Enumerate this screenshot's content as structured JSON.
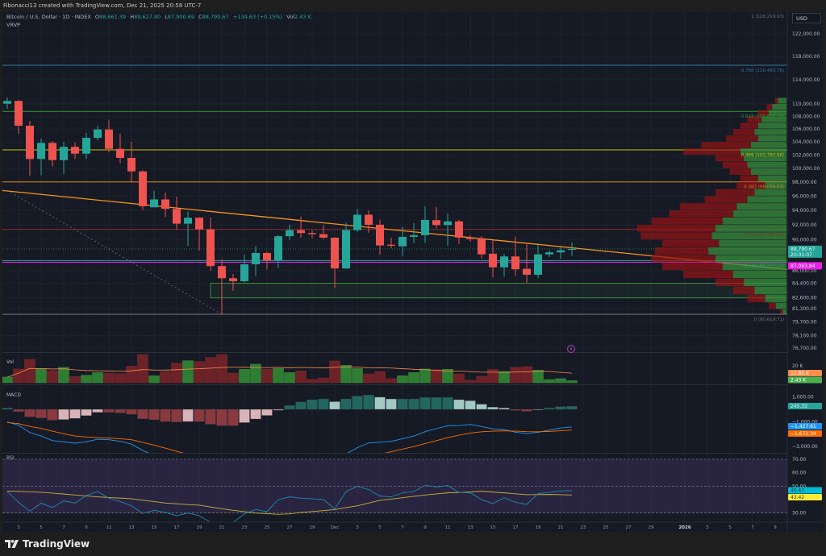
{
  "attribution": "Fibonacci13 created with TradingView.com, Dec 21, 2025 20:58 UTC-7",
  "legend": {
    "symbol": "Bitcoin / U.S. Dollar · 1D · INDEX",
    "o_label": "O",
    "o": "88,661.39",
    "h_label": "H",
    "h": "89,627.40",
    "l_label": "L",
    "l": "87,900.69",
    "c_label": "C",
    "c": "88,790.67",
    "change": "+134.63 (+0.15%)",
    "vol_label": "Vol",
    "vol": "2.43 K",
    "indicator": "VRVP"
  },
  "currency_button": "USD",
  "brand": "TradingView",
  "colors": {
    "background": "#161a25",
    "up": "#26a69a",
    "down": "#ef5350",
    "trendline": "#f7931a",
    "current_price": "#26a69a",
    "marker_price": "#e91ee9"
  },
  "icons": {
    "events": "lightning-circle-icon",
    "logo": "tradingview-logo-icon"
  },
  "chart_data": [
    {
      "type": "candlestick",
      "pane": "price",
      "scale": "log",
      "price_axis_labels": [
        "122,000.00",
        "118,000.00",
        "114,000.00",
        "110,000.00",
        "108,000.00",
        "106,000.00",
        "104,000.00",
        "102,000.00",
        "100,000.00",
        "98,000.00",
        "96,000.00",
        "94,000.00",
        "92,000.00",
        "90,000.00",
        "86,000.00",
        "84,400.00",
        "82,600.00",
        "81,300.00",
        "79,700.00",
        "78,100.00",
        "76,700.00"
      ],
      "time_axis_labels": [
        "3",
        "5",
        "7",
        "9",
        "11",
        "13",
        "15",
        "17",
        "19",
        "21",
        "23",
        "25",
        "27",
        "29",
        "Dec",
        "3",
        "5",
        "7",
        "9",
        "11",
        "13",
        "15",
        "17",
        "19",
        "21",
        "23",
        "25",
        "27",
        "29",
        "2026",
        "3",
        "5",
        "7",
        "9"
      ],
      "candles_columns": [
        "date",
        "open",
        "high",
        "low",
        "close"
      ],
      "candles": [
        [
          "2025-11-02",
          110040,
          111090,
          109220,
          110490
        ],
        [
          "2025-11-03",
          110490,
          110660,
          105260,
          106520
        ],
        [
          "2025-11-04",
          106520,
          107280,
          98940,
          101410
        ],
        [
          "2025-11-05",
          101410,
          104510,
          98980,
          103850
        ],
        [
          "2025-11-06",
          103850,
          104100,
          100280,
          101240
        ],
        [
          "2025-11-07",
          101240,
          104000,
          99210,
          103240
        ],
        [
          "2025-11-08",
          103240,
          103890,
          101410,
          102210
        ],
        [
          "2025-11-09",
          102210,
          105390,
          101410,
          104630
        ],
        [
          "2025-11-10",
          104630,
          106520,
          104220,
          105930
        ],
        [
          "2025-11-11",
          105930,
          107370,
          102420,
          102940
        ],
        [
          "2025-11-12",
          102940,
          105260,
          100760,
          101570
        ],
        [
          "2025-11-13",
          101570,
          104000,
          97920,
          99570
        ],
        [
          "2025-11-14",
          99570,
          99730,
          94050,
          94570
        ],
        [
          "2025-11-15",
          94420,
          96760,
          94420,
          95530
        ],
        [
          "2025-11-16",
          95530,
          96500,
          93090,
          94200
        ],
        [
          "2025-11-17",
          94200,
          95930,
          91360,
          92160
        ],
        [
          "2025-11-18",
          92160,
          93820,
          89210,
          92980
        ],
        [
          "2025-11-19",
          92980,
          93050,
          88580,
          91400
        ],
        [
          "2025-11-20",
          91400,
          93010,
          85980,
          86570
        ],
        [
          "2025-11-21",
          86570,
          87430,
          80620,
          85030
        ],
        [
          "2025-11-22",
          85030,
          85570,
          83460,
          84660
        ],
        [
          "2025-11-23",
          84660,
          88050,
          84500,
          86800
        ],
        [
          "2025-11-24",
          86800,
          89180,
          85300,
          88260
        ],
        [
          "2025-11-25",
          88260,
          88470,
          86120,
          87320
        ],
        [
          "2025-11-26",
          87320,
          90610,
          86330,
          90470
        ],
        [
          "2025-11-27",
          90470,
          92020,
          89960,
          91290
        ],
        [
          "2025-11-28",
          91290,
          93120,
          90280,
          90900
        ],
        [
          "2025-11-29",
          90900,
          91250,
          90210,
          90750
        ],
        [
          "2025-11-30",
          90750,
          91980,
          90100,
          90280
        ],
        [
          "2025-12-01",
          90280,
          90310,
          83830,
          86270
        ],
        [
          "2025-12-02",
          86270,
          92350,
          86200,
          91290
        ],
        [
          "2025-12-03",
          91290,
          94200,
          91060,
          93400
        ],
        [
          "2025-12-04",
          93400,
          93980,
          90930,
          92020
        ],
        [
          "2025-12-05",
          92020,
          92710,
          88050,
          89250
        ],
        [
          "2025-12-06",
          89350,
          90280,
          88860,
          89210
        ],
        [
          "2025-12-07",
          89140,
          91730,
          87810,
          90390
        ],
        [
          "2025-12-08",
          90390,
          92240,
          89560,
          90610
        ],
        [
          "2025-12-09",
          90610,
          94570,
          89560,
          92680
        ],
        [
          "2025-12-10",
          92640,
          94490,
          91560,
          91980
        ],
        [
          "2025-12-11",
          91980,
          93560,
          89210,
          92480
        ],
        [
          "2025-12-12",
          92480,
          92710,
          89450,
          90280
        ],
        [
          "2025-12-13",
          90310,
          90610,
          89750,
          90100
        ],
        [
          "2025-12-14",
          90200,
          90460,
          87560,
          88080
        ],
        [
          "2025-12-15",
          88160,
          89990,
          85130,
          86410
        ],
        [
          "2025-12-16",
          86410,
          88160,
          85230,
          87810
        ],
        [
          "2025-12-17",
          87810,
          90390,
          85300,
          86160
        ],
        [
          "2025-12-18",
          86230,
          89390,
          84460,
          85470
        ],
        [
          "2025-12-19",
          85470,
          89320,
          85060,
          88080
        ],
        [
          "2025-12-20",
          88080,
          88580,
          87740,
          88340
        ],
        [
          "2025-12-21",
          88340,
          89030,
          87530,
          88610
        ],
        [
          "2025-12-22",
          88661.39,
          89627.4,
          87900.69,
          88790.67
        ]
      ],
      "fib_levels": [
        {
          "label": "1 (126,219.03)",
          "price": 126219.03,
          "color": "#787b86"
        },
        {
          "label": "0.786 (116,460.78)",
          "price": 116460.78,
          "color": "#2f7fa8"
        },
        {
          "label": "0.618 (108,800.09)",
          "price": 108800.09,
          "color": "#2e9e2e"
        },
        {
          "label": "0.486 (102,780.98)",
          "price": 102780.98,
          "color": "#c8c800"
        },
        {
          "label": "0.382 (98,038.63)",
          "price": 98038.63,
          "color": "#d9891e"
        },
        {
          "label": "0.236 (91,381.15)",
          "price": 91381.15,
          "color": "#8b2a2a"
        },
        {
          "label": "0.146 (87,277.21)",
          "price": 87277.21,
          "color": "#26a69a"
        },
        {
          "label": "0 (80,619.71)",
          "price": 80619.71,
          "color": "#787b86"
        }
      ],
      "trendline": {
        "from": [
          "2025-11-02",
          96800
        ],
        "to": [
          "2026-01-11",
          86000
        ],
        "color": "#f7931a"
      },
      "dotted_line": {
        "from": [
          "2025-11-02",
          96800
        ],
        "to": [
          "2025-11-21",
          80620
        ]
      },
      "zone": {
        "from_date": "2025-11-20",
        "to_date": "2026-01-11",
        "top": 84400,
        "bottom": 82600
      },
      "marker_line": {
        "price": 87063.84,
        "label": "87,063.84",
        "color": "#e91ee9"
      },
      "last_price": {
        "price": 88790.67,
        "label": "88,790.67",
        "countdown": "20:01:07"
      },
      "volume_profile_columns": [
        "price",
        "up_volume",
        "down_volume"
      ],
      "volume_profile": [
        [
          110500,
          12,
          4
        ],
        [
          109500,
          20,
          8
        ],
        [
          108500,
          25,
          15
        ],
        [
          107500,
          35,
          20
        ],
        [
          106500,
          40,
          25
        ],
        [
          105500,
          45,
          30
        ],
        [
          104500,
          40,
          45
        ],
        [
          103500,
          50,
          70
        ],
        [
          102500,
          65,
          80
        ],
        [
          101500,
          60,
          40
        ],
        [
          100500,
          55,
          35
        ],
        [
          99500,
          50,
          30
        ],
        [
          98500,
          40,
          25
        ],
        [
          97500,
          30,
          40
        ],
        [
          96500,
          45,
          55
        ],
        [
          95500,
          55,
          60
        ],
        [
          94500,
          70,
          80
        ],
        [
          93500,
          75,
          90
        ],
        [
          92500,
          90,
          100
        ],
        [
          91500,
          100,
          110
        ],
        [
          90500,
          105,
          100
        ],
        [
          89500,
          95,
          80
        ],
        [
          88500,
          110,
          75
        ],
        [
          87500,
          100,
          90
        ],
        [
          86500,
          90,
          85
        ],
        [
          85500,
          75,
          70
        ],
        [
          84500,
          60,
          40
        ],
        [
          83500,
          45,
          30
        ],
        [
          82500,
          30,
          25
        ],
        [
          81500,
          15,
          10
        ],
        [
          80900,
          5,
          4
        ]
      ]
    },
    {
      "type": "bar",
      "pane": "volume",
      "title": "Vol",
      "unit": "K",
      "values": [
        6.7,
        16.2,
        27.6,
        16.2,
        14.3,
        18.1,
        7.3,
        8.9,
        12.0,
        11.1,
        10.8,
        19.6,
        33.3,
        8.2,
        13.0,
        23.1,
        26.0,
        25.0,
        29.8,
        33.3,
        11.4,
        15.8,
        21.9,
        15.8,
        16.8,
        12.0,
        13.9,
        4.1,
        5.7,
        25.7,
        20.6,
        16.8,
        10.5,
        13.3,
        4.8,
        8.2,
        12.0,
        16.2,
        15.5,
        15.8,
        10.5,
        2.9,
        7.6,
        15.8,
        13.3,
        18.1,
        19.0,
        14.9,
        3.8,
        4.8,
        2.43
      ],
      "axis_labels": [
        "20 K"
      ],
      "ma_label": "11.85 K",
      "ma_color": "#ff8c4a",
      "last_label": "2.43 K",
      "last_color": "#4caf50"
    },
    {
      "type": "bar+line",
      "pane": "macd",
      "title": "MACD",
      "histogram": [
        110,
        -180,
        -600,
        -690,
        -870,
        -820,
        -730,
        -510,
        -240,
        -240,
        -290,
        -400,
        -760,
        -840,
        -980,
        -1020,
        -980,
        -980,
        -1200,
        -1310,
        -1310,
        -1070,
        -780,
        -490,
        -70,
        310,
        600,
        780,
        840,
        620,
        840,
        1070,
        1160,
        980,
        840,
        840,
        840,
        960,
        960,
        960,
        780,
        690,
        420,
        180,
        110,
        -90,
        -160,
        -40,
        110,
        220,
        245.33
      ],
      "macd": [
        -1020,
        -1280,
        -1870,
        -2150,
        -2520,
        -2620,
        -2730,
        -2620,
        -2410,
        -2450,
        -2580,
        -2800,
        -3320,
        -3730,
        -4110,
        -4405,
        -4610,
        -4855,
        -5375,
        -5810,
        -6140,
        -6165,
        -6070,
        -5900,
        -5500,
        -5040,
        -4600,
        -4225,
        -3955,
        -4020,
        -3590,
        -3095,
        -2715,
        -2650,
        -2580,
        -2370,
        -2160,
        -1800,
        -1560,
        -1320,
        -1305,
        -1222,
        -1387,
        -1582,
        -1625,
        -1847,
        -1957,
        -1847,
        -1670,
        -1505,
        -1427.61
      ],
      "signal": [
        -1060,
        -1150,
        -1380,
        -1540,
        -1760,
        -1970,
        -2150,
        -2230,
        -2280,
        -2320,
        -2370,
        -2450,
        -2670,
        -2890,
        -3130,
        -3385,
        -3630,
        -3875,
        -4175,
        -4500,
        -4830,
        -5095,
        -5290,
        -5410,
        -5430,
        -5350,
        -5200,
        -5005,
        -4795,
        -4640,
        -4430,
        -4165,
        -3875,
        -3630,
        -3420,
        -3210,
        -3000,
        -2760,
        -2520,
        -2280,
        -2085,
        -1912,
        -1807,
        -1762,
        -1735,
        -1757,
        -1797,
        -1807,
        -1780,
        -1725,
        -1672.34
      ],
      "axis_labels": [
        "1,000.00",
        "−1,000.00",
        "−3,000.00"
      ],
      "hist_label": "245.33",
      "macd_label": "−1,427.61",
      "signal_label": "−1,672.34",
      "macd_color": "#2196f3",
      "signal_color": "#ff6d00"
    },
    {
      "type": "line",
      "pane": "rsi",
      "title": "RSI",
      "rsi": [
        46,
        38,
        31.4,
        37.4,
        34,
        39,
        37.4,
        43,
        46,
        41,
        38.6,
        35.4,
        29.6,
        32,
        30.4,
        28,
        30,
        28,
        23,
        21,
        23,
        29.4,
        32.6,
        31,
        40,
        42,
        41,
        40.6,
        40,
        33,
        46,
        50,
        47.4,
        42.6,
        42,
        45,
        46,
        50.6,
        49.4,
        50.4,
        45.4,
        45,
        40,
        37,
        41.4,
        38,
        36.4,
        44.4,
        45.4,
        46.4,
        46.67
      ],
      "rsi_ma": [
        46.4,
        46.1,
        45.8,
        45.4,
        44.8,
        44.1,
        43.4,
        42.7,
        42.0,
        41.5,
        41.1,
        40.6,
        39.5,
        38.5,
        37.4,
        36.9,
        36.3,
        35.8,
        34.5,
        33.2,
        32.0,
        31.0,
        30.0,
        29.5,
        29.0,
        29.4,
        30.4,
        31.1,
        31.8,
        32.6,
        34.0,
        35.4,
        37.4,
        39.4,
        40.4,
        41.4,
        42.4,
        43.4,
        44.2,
        45.0,
        45.3,
        45.6,
        46.2,
        45.6,
        45.0,
        44.3,
        43.6,
        43.7,
        43.8,
        43.6,
        43.42
      ],
      "axis_labels": [
        "70.00",
        "60.00",
        "50.00",
        "30.00"
      ],
      "rsi_label": "46.67",
      "ma_label": "43.42",
      "rsi_color": "#29b6f6",
      "ma_color": "#ffeb3b",
      "band": [
        30,
        70
      ]
    }
  ]
}
